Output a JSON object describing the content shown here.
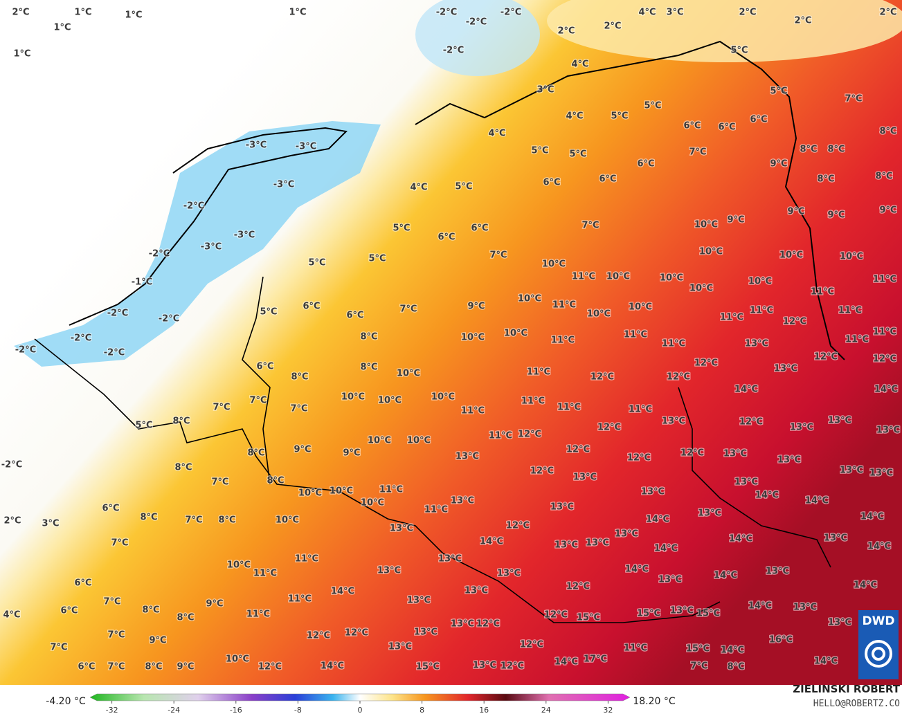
{
  "map": {
    "labels": [
      "2°C",
      "1°C",
      "1°C",
      "1°C",
      "1°C",
      "1°C",
      "-2°C",
      "-2°C",
      "-2°C",
      "-2°C",
      "2°C",
      "2°C",
      "4°C",
      "3°C",
      "2°C",
      "2°C",
      "2°C",
      "5°C",
      "4°C",
      "3°C",
      "5°C",
      "7°C",
      "8°C",
      "4°C",
      "4°C",
      "5°C",
      "5°C",
      "6°C",
      "6°C",
      "6°C",
      "7°C",
      "5°C",
      "5°C",
      "6°C",
      "9°C",
      "8°C",
      "8°C",
      "8°C",
      "8°C",
      "-3°C",
      "-3°C",
      "-3°C",
      "-2°C",
      "-3°C",
      "-3°C",
      "-2°C",
      "-1°C",
      "-2°C",
      "-2°C",
      "-2°C",
      "-2°C",
      "-2°C",
      "-2°C",
      "2°C",
      "3°C",
      "4°C",
      "5°C",
      "6°C",
      "6°C",
      "5°C",
      "6°C",
      "6°C",
      "7°C",
      "10°C",
      "9°C",
      "9°C",
      "9°C",
      "9°C",
      "5°C",
      "5°C",
      "7°C",
      "10°C",
      "10°C",
      "10°C",
      "10°C",
      "11°C",
      "10°C",
      "10°C",
      "10°C",
      "10°C",
      "11°C",
      "5°C",
      "6°C",
      "6°C",
      "7°C",
      "9°C",
      "10°C",
      "11°C",
      "10°C",
      "10°C",
      "11°C",
      "11°C",
      "12°C",
      "11°C",
      "11°C",
      "11°C",
      "8°C",
      "10°C",
      "10°C",
      "11°C",
      "11°C",
      "11°C",
      "13°C",
      "11°C",
      "12°C",
      "12°C",
      "12°C",
      "13°C",
      "12°C",
      "12°C",
      "11°C",
      "6°C",
      "8°C",
      "8°C",
      "10°C",
      "14°C",
      "14°C",
      "10°C",
      "10°C",
      "10°C",
      "7°C",
      "7°C",
      "7°C",
      "11°C",
      "11°C",
      "11°C",
      "11°C",
      "5°C",
      "8°C",
      "13°C",
      "12°C",
      "13°C",
      "13°C",
      "13°C",
      "12°C",
      "10°C",
      "10°C",
      "11°C",
      "12°C",
      "8°C",
      "9°C",
      "9°C",
      "12°C",
      "12°C",
      "12°C",
      "13°C",
      "13°C",
      "13°C",
      "8°C",
      "7°C",
      "8°C",
      "12°C",
      "13°C",
      "13°C",
      "13°C",
      "13°C",
      "10°C",
      "10°C",
      "11°C",
      "13°C",
      "14°C",
      "14°C",
      "10°C",
      "13°C",
      "6°C",
      "8°C",
      "7°C",
      "8°C",
      "10°C",
      "11°C",
      "13°C",
      "14°C",
      "13°C",
      "14°C",
      "13°C",
      "12°C",
      "14°C",
      "13°C",
      "14°C",
      "13°C",
      "14°C",
      "7°C",
      "13°C",
      "13°C",
      "14°C",
      "11°C",
      "10°C",
      "11°C",
      "13°C",
      "13°C",
      "13°C",
      "14°C",
      "13°C",
      "14°C",
      "13°C",
      "6°C",
      "14°C",
      "13°C",
      "12°C",
      "14°C",
      "7°C",
      "9°C",
      "11°C",
      "13°C",
      "6°C",
      "4°C",
      "8°C",
      "11°C",
      "8°C",
      "12°C",
      "15°C",
      "15°C",
      "13°C",
      "15°C",
      "14°C",
      "13°C",
      "13°C",
      "13°C",
      "12°C",
      "7°C",
      "9°C",
      "12°C",
      "12°C",
      "13°C",
      "13°C",
      "12°C",
      "11°C",
      "15°C",
      "14°C",
      "16°C",
      "7°C",
      "10°C",
      "17°C",
      "14°C",
      "14°C",
      "6°C",
      "7°C",
      "8°C",
      "9°C",
      "12°C",
      "14°C",
      "15°C",
      "13°C",
      "12°C",
      "7°C",
      "8°C"
    ]
  },
  "colorbar": {
    "min_label": "-4.20 °C",
    "max_label": "18.20 °C",
    "ticks": [
      -32,
      -24,
      -16,
      -8,
      0,
      8,
      16,
      24,
      32
    ]
  },
  "credit": {
    "name": "ZIELINSKI ROBERT",
    "email": "HELLO@ROBERTZ.CO"
  },
  "logo": "DWD"
}
